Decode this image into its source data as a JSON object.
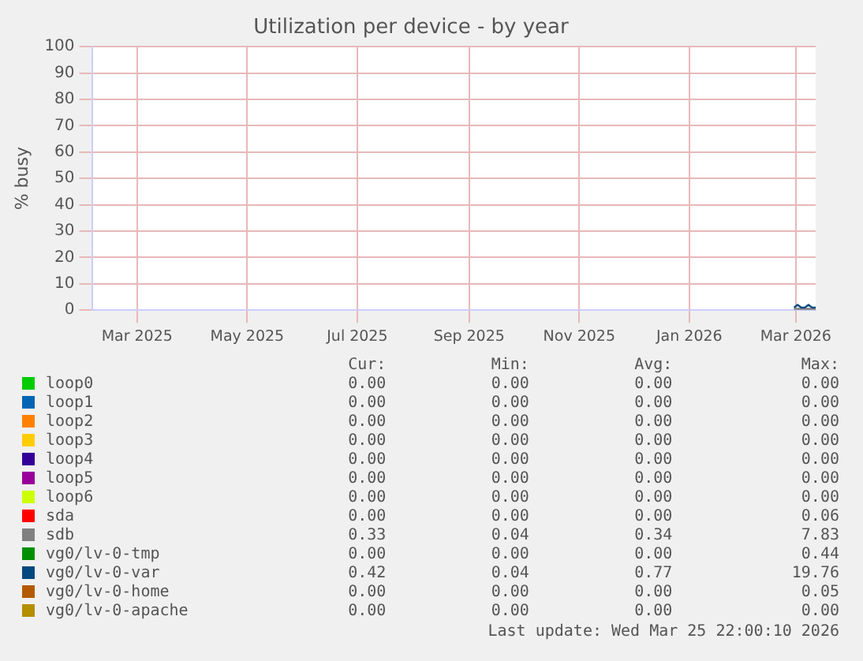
{
  "chart_data": {
    "type": "line",
    "title": "Utilization per device - by year",
    "ylabel": "% busy",
    "xlim": [
      "2025-02-04",
      "2026-03-12"
    ],
    "xticks": [
      {
        "value": "2025-03-01",
        "label": "Mar 2025"
      },
      {
        "value": "2025-05-01",
        "label": "May 2025"
      },
      {
        "value": "2025-07-01",
        "label": "Jul 2025"
      },
      {
        "value": "2025-09-01",
        "label": "Sep 2025"
      },
      {
        "value": "2025-11-01",
        "label": "Nov 2025"
      },
      {
        "value": "2026-01-01",
        "label": "Jan 2026"
      },
      {
        "value": "2026-03-01",
        "label": "Mar 2026"
      }
    ],
    "ylim": [
      0,
      100
    ],
    "yticks": [
      0,
      10,
      20,
      30,
      40,
      50,
      60,
      70,
      80,
      90,
      100
    ],
    "grid": true,
    "legend": "bottom",
    "marker": "none",
    "line_style": "solid",
    "x": [
      "2026-02-28",
      "2026-03-02",
      "2026-03-04",
      "2026-03-06",
      "2026-03-08",
      "2026-03-10",
      "2026-03-12"
    ],
    "series": [
      {
        "name": "loop0",
        "color": "#00cc00",
        "values": [
          null,
          null,
          null,
          null,
          null,
          null,
          null
        ]
      },
      {
        "name": "loop1",
        "color": "#0066b3",
        "values": [
          null,
          null,
          null,
          null,
          null,
          null,
          null
        ]
      },
      {
        "name": "loop2",
        "color": "#ff8000",
        "values": [
          null,
          null,
          null,
          null,
          null,
          null,
          null
        ]
      },
      {
        "name": "loop3",
        "color": "#ffcc00",
        "values": [
          null,
          null,
          null,
          null,
          null,
          null,
          null
        ]
      },
      {
        "name": "loop4",
        "color": "#330099",
        "values": [
          null,
          null,
          null,
          null,
          null,
          null,
          null
        ]
      },
      {
        "name": "loop5",
        "color": "#990099",
        "values": [
          null,
          null,
          null,
          null,
          null,
          null,
          null
        ]
      },
      {
        "name": "loop6",
        "color": "#ccff00",
        "values": [
          null,
          null,
          null,
          null,
          null,
          null,
          null
        ]
      },
      {
        "name": "sda",
        "color": "#ff0000",
        "values": [
          null,
          null,
          null,
          null,
          null,
          null,
          null
        ]
      },
      {
        "name": "sdb",
        "color": "#808080",
        "values": [
          0.5,
          0.5,
          0.5,
          0.5,
          0.5,
          0.5,
          0.5
        ]
      },
      {
        "name": "vg0/lv-0-tmp",
        "color": "#008f00",
        "values": [
          null,
          null,
          null,
          null,
          null,
          null,
          null
        ]
      },
      {
        "name": "vg0/lv-0-var",
        "color": "#00487d",
        "values": [
          1,
          2,
          1,
          1,
          2,
          1,
          1
        ]
      },
      {
        "name": "vg0/lv-0-home",
        "color": "#b35a00",
        "values": [
          null,
          null,
          null,
          null,
          null,
          null,
          null
        ]
      },
      {
        "name": "vg0/lv-0-apache",
        "color": "#b38f00",
        "values": [
          null,
          null,
          null,
          null,
          null,
          null,
          null
        ]
      }
    ],
    "annotations": [
      "Cur:",
      "Min:",
      "Avg:",
      "Max:",
      "0.00",
      "0.00",
      "0.00",
      "0.00",
      "0.00",
      "0.00",
      "0.00",
      "0.00",
      "0.00",
      "0.00",
      "0.00",
      "0.00",
      "0.00",
      "0.00",
      "0.00",
      "0.00",
      "0.00",
      "0.00",
      "0.00",
      "0.00",
      "0.00",
      "0.00",
      "0.00",
      "0.00",
      "0.00",
      "0.00",
      "0.00",
      "0.00",
      "0.00",
      "0.00",
      "0.00",
      "0.06",
      "0.33",
      "0.04",
      "0.34",
      "7.83",
      "0.00",
      "0.00",
      "0.00",
      "0.44",
      "0.42",
      "0.04",
      "0.77",
      "19.76",
      "0.00",
      "0.00",
      "0.00",
      "0.05",
      "0.00",
      "0.00",
      "0.00",
      "0.00",
      "Last update: Wed Mar 25 22:00:10 2026"
    ]
  }
}
